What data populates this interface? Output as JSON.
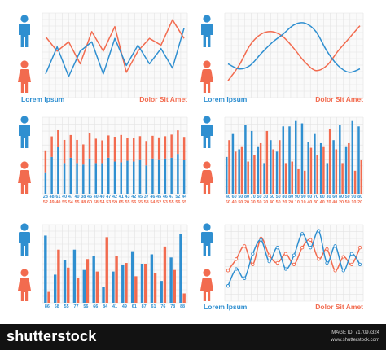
{
  "palette": {
    "male": "#2f8fd0",
    "female": "#f26b4f",
    "grid": "#e3e3e3",
    "background": "#ffffff"
  },
  "icons": [
    "male-figure-icon",
    "female-figure-icon"
  ],
  "captions": {
    "left": "Lorem Ipsum",
    "right": "Dolor Sit Amet"
  },
  "chart_data": [
    {
      "type": "line",
      "position": "top-left",
      "title": "",
      "xlabel": "",
      "ylabel": "",
      "ylim": [
        0,
        100
      ],
      "x": [
        0,
        1,
        2,
        3,
        4,
        5,
        6,
        7,
        8,
        9,
        10,
        11,
        12
      ],
      "series": [
        {
          "values": [
            72,
            55,
            66,
            40,
            78,
            55,
            84,
            30,
            55,
            70,
            62,
            92,
            70
          ]
        },
        {
          "values": [
            28,
            60,
            25,
            55,
            66,
            28,
            70,
            38,
            62,
            40,
            58,
            35,
            82
          ]
        }
      ],
      "grid": true
    },
    {
      "type": "line",
      "position": "top-right",
      "title": "",
      "xlabel": "",
      "ylabel": "",
      "ylim": [
        0,
        100
      ],
      "x": [
        0,
        1,
        2,
        3,
        4,
        5,
        6,
        7,
        8,
        9,
        10,
        11,
        12
      ],
      "series": [
        {
          "values": [
            20,
            38,
            62,
            75,
            78,
            72,
            58,
            42,
            32,
            38,
            55,
            70,
            85
          ]
        },
        {
          "values": [
            40,
            34,
            38,
            52,
            65,
            75,
            86,
            88,
            78,
            55,
            38,
            30,
            34
          ]
        }
      ],
      "grid": true
    },
    {
      "type": "bar",
      "position": "middle-left",
      "title": "",
      "ylim": [
        0,
        100
      ],
      "categories": [
        "1",
        "2",
        "3",
        "4",
        "5",
        "6",
        "7",
        "8",
        "9",
        "10",
        "11",
        "12",
        "13",
        "14",
        "15",
        "16",
        "17",
        "18",
        "19",
        "20",
        "21",
        "22",
        "23"
      ],
      "tick_labels_top": [
        "28",
        "48",
        "61",
        "40",
        "47",
        "40",
        "38",
        "46",
        "40",
        "40",
        "47",
        "42",
        "41",
        "43",
        "42",
        "45",
        "37",
        "46",
        "45",
        "46",
        "47",
        "52",
        "44"
      ],
      "tick_labels_bottom": [
        "52",
        "49",
        "40",
        "55",
        "54",
        "55",
        "48",
        "60",
        "58",
        "54",
        "53",
        "59",
        "65",
        "55",
        "56",
        "55",
        "58",
        "54",
        "52",
        "53",
        "55",
        "56",
        "55"
      ],
      "series": [
        {
          "values": [
            28,
            48,
            61,
            40,
            47,
            40,
            38,
            46,
            40,
            40,
            47,
            42,
            41,
            43,
            42,
            45,
            37,
            46,
            45,
            46,
            47,
            52,
            44
          ]
        },
        {
          "values": [
            52,
            49,
            40,
            55,
            54,
            55,
            48,
            60,
            58,
            54,
            53,
            59,
            65,
            55,
            56,
            55,
            58,
            54,
            52,
            53,
            55,
            56,
            55
          ]
        }
      ],
      "grid": true
    },
    {
      "type": "bar",
      "position": "middle-right",
      "title": "",
      "ylim": [
        0,
        100
      ],
      "categories": [
        "1",
        "2",
        "3",
        "4",
        "5",
        "6",
        "7",
        "8",
        "9",
        "10",
        "11",
        "12",
        "13",
        "14",
        "15",
        "16",
        "17",
        "18",
        "19",
        "20",
        "21",
        "22"
      ],
      "tick_labels_top": [
        "40",
        "60",
        "50",
        "80",
        "70",
        "50",
        "30",
        "60",
        "50",
        "80",
        "80",
        "90",
        "90",
        "60",
        "70",
        "60",
        "30",
        "60",
        "80",
        "50",
        "90",
        "80"
      ],
      "tick_labels_bottom": [
        "60",
        "40",
        "50",
        "20",
        "30",
        "50",
        "70",
        "40",
        "50",
        "20",
        "20",
        "10",
        "10",
        "40",
        "30",
        "40",
        "70",
        "40",
        "20",
        "50",
        "10",
        "20"
      ],
      "series": [
        {
          "values": [
            48,
            78,
            58,
            90,
            82,
            62,
            40,
            70,
            55,
            88,
            88,
            95,
            92,
            68,
            78,
            66,
            40,
            70,
            90,
            62,
            95,
            88
          ]
        },
        {
          "values": [
            70,
            55,
            62,
            42,
            50,
            66,
            82,
            58,
            70,
            40,
            42,
            32,
            30,
            60,
            50,
            62,
            84,
            58,
            40,
            66,
            30,
            44
          ]
        }
      ],
      "grid": true
    },
    {
      "type": "bar",
      "position": "bottom-left",
      "title": "",
      "ylim": [
        0,
        100
      ],
      "categories": [
        "1",
        "2",
        "3",
        "4",
        "5",
        "6",
        "7",
        "8",
        "9",
        "10",
        "11",
        "12",
        "13",
        "14",
        "15"
      ],
      "tick_labels_top": [
        "86",
        "68",
        "55",
        "77",
        "56",
        "66",
        "84",
        "41",
        "49",
        "61",
        "87",
        "61",
        "76",
        "78",
        "88"
      ],
      "tick_labels_bottom": [],
      "series": [
        {
          "values": [
            86,
            36,
            55,
            68,
            42,
            60,
            20,
            40,
            49,
            66,
            50,
            62,
            28,
            58,
            88
          ]
        },
        {
          "values": [
            14,
            68,
            45,
            32,
            56,
            40,
            84,
            60,
            51,
            34,
            50,
            38,
            72,
            42,
            12
          ]
        }
      ],
      "grid": true
    },
    {
      "type": "line",
      "position": "bottom-right",
      "title": "",
      "xlabel": "",
      "ylabel": "",
      "ylim": [
        0,
        100
      ],
      "x": [
        0,
        1,
        2,
        3,
        4,
        5,
        6,
        7,
        8,
        9,
        10,
        11,
        12,
        13,
        14,
        15,
        16
      ],
      "series": [
        {
          "values": [
            40,
            55,
            72,
            48,
            82,
            60,
            50,
            62,
            48,
            70,
            80,
            55,
            68,
            40,
            58,
            48,
            70
          ]
        },
        {
          "values": [
            20,
            42,
            30,
            62,
            80,
            52,
            70,
            42,
            60,
            88,
            70,
            92,
            50,
            72,
            40,
            62,
            48
          ]
        }
      ],
      "grid": true
    }
  ],
  "footer": {
    "logo": "shutterstock",
    "image_id": "IMAGE ID: 717097324",
    "url": "www.shutterstock.com"
  }
}
